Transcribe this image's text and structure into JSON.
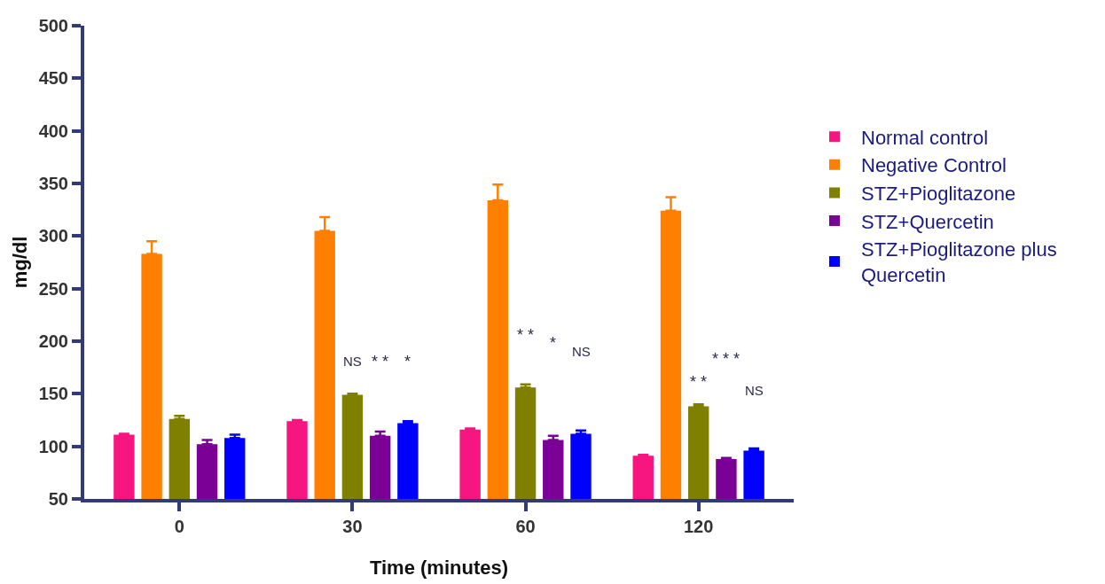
{
  "chart_data": {
    "type": "bar",
    "xlabel": "Time (minutes)",
    "ylabel": "mg/dl",
    "categories": [
      "0",
      "30",
      "60",
      "120"
    ],
    "series": [
      {
        "name": "Normal control",
        "color": "#f7157f",
        "values": [
          111,
          124,
          116,
          91
        ],
        "errors": [
          [
            111,
            112
          ],
          [
            124,
            125
          ],
          [
            116,
            117
          ],
          [
            91,
            92
          ]
        ]
      },
      {
        "name": "Negative Control",
        "color": "#ff8000",
        "values": [
          283,
          305,
          334,
          324
        ],
        "errors": [
          [
            283,
            295
          ],
          [
            305,
            318
          ],
          [
            334,
            349
          ],
          [
            324,
            337
          ]
        ]
      },
      {
        "name": "STZ+Pioglitazone",
        "color": "#808000",
        "values": [
          126,
          149,
          156,
          138
        ],
        "errors": [
          [
            126,
            129
          ],
          [
            149,
            150
          ],
          [
            156,
            159
          ],
          [
            138,
            140
          ]
        ]
      },
      {
        "name": "STZ+Quercetin",
        "color": "#7a0096",
        "values": [
          102,
          110,
          106,
          88
        ],
        "errors": [
          [
            102,
            106
          ],
          [
            110,
            114
          ],
          [
            106,
            110
          ],
          [
            88,
            89
          ]
        ]
      },
      {
        "name": "STZ+Pioglitazone plus Quercetin",
        "color": "#0000ff",
        "values": [
          108,
          122,
          112,
          96
        ],
        "errors": [
          [
            108,
            111
          ],
          [
            122,
            124
          ],
          [
            112,
            115
          ],
          [
            96,
            98
          ]
        ]
      }
    ],
    "annotations": [
      "NS",
      "* *",
      "*",
      "* *",
      "*",
      "NS",
      "* *",
      "* * *",
      "NS"
    ],
    "ylim": [
      50,
      500
    ],
    "yticks": [
      50,
      100,
      150,
      200,
      250,
      300,
      350,
      400,
      450,
      500
    ],
    "grid": false,
    "legend": "right"
  }
}
